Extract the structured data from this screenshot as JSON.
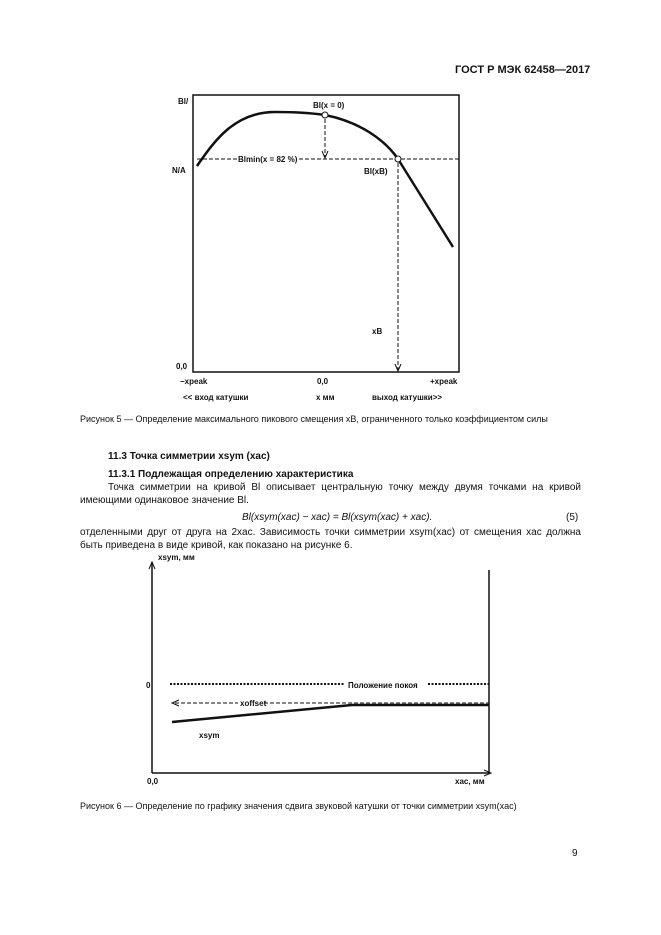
{
  "header": {
    "standard": "ГОСТ Р МЭК 62458—2017"
  },
  "figure5": {
    "y_label": "Bl/",
    "y_level": "N/A",
    "point_top": "Bl(x = 0)",
    "bl_min": "Blmin(x = 82 %)",
    "point_b": "Bl(xB)",
    "xb": "xB",
    "origin": "0,0",
    "x_left": "−xpeak",
    "x_center": "0,0",
    "x_right": "+xpeak",
    "dir_left": "<< вход катушки",
    "x_unit": "x мм",
    "dir_right": "выход катушки>>",
    "caption": "Рисунок 5 — Определение максимального пикового смещения xB, ограниченного только коэффициентом силы"
  },
  "section": {
    "heading": "11.3 Точка симметрии xsym (xac)",
    "subheading": "11.3.1 Подлежащая определению характеристика",
    "para1": "Точка симметрии на кривой Bl описывает центральную точку между двумя точками на кривой имеющими одинаковое значение Bl.",
    "formula": "Bl(xsym(xac) − xac) = Bl(xsym(xac) + xac).",
    "formula_no": "(5)",
    "para2": "отделенными друг от друга на 2xac. Зависимость точки симметрии xsym(xac) от смещения xac должна быть приведена в виде кривой, как показано на рисунке 6."
  },
  "figure6": {
    "y_label": "xsym, мм",
    "zero": "0",
    "rest": "Положение покоя",
    "offset": "xoffset",
    "sym": "xsym",
    "origin": "0,0",
    "x_label": "xac, мм",
    "caption": "Рисунок 6 — Определение по графику значения сдвига звуковой катушки от точки симметрии xsym(xac)"
  },
  "footer": {
    "page": "9"
  }
}
